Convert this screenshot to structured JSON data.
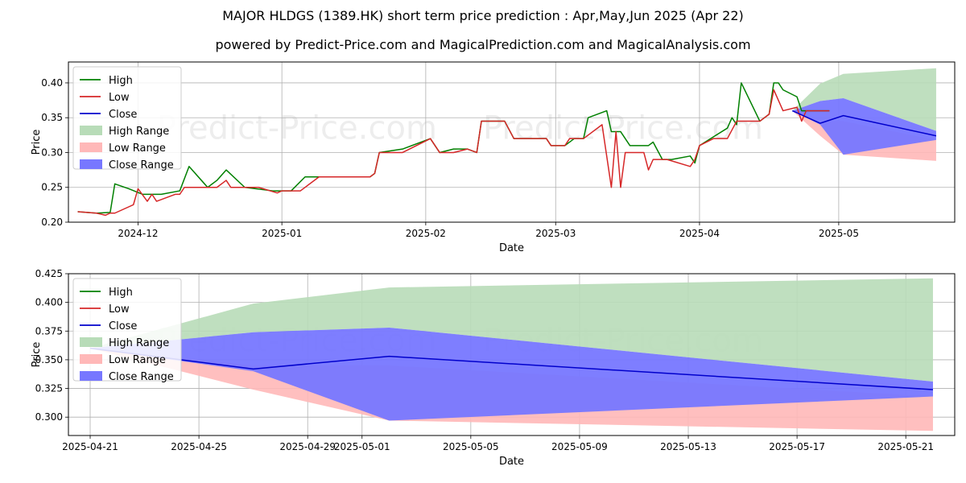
{
  "title": "MAJOR HLDGS (1389.HK) short term price prediction : Apr,May,Jun 2025 (Apr 22)",
  "subtitle": "powered by Predict-Price.com and MagicalPrediction.com and MagicalAnalysis.com",
  "watermark": "Predict-Price.com",
  "colors": {
    "high": "#008000",
    "low": "#d62728",
    "close": "#0000cc",
    "high_range": "#b8dcb8",
    "low_range": "#ffb8b8",
    "close_range": "#7777ff",
    "grid": "#b0b0b0"
  },
  "chart_data": [
    {
      "type": "line",
      "xlabel": "Date",
      "ylabel": "Price",
      "xlim": [
        "2024-11-16",
        "2025-05-26"
      ],
      "ylim": [
        0.2,
        0.43
      ],
      "yticks": [
        0.2,
        0.25,
        0.3,
        0.35,
        0.4
      ],
      "ytick_labels": [
        "0.20",
        "0.25",
        "0.30",
        "0.35",
        "0.40"
      ],
      "xticks": [
        "2024-12-01",
        "2025-01-01",
        "2025-02-01",
        "2025-03-01",
        "2025-04-01",
        "2025-05-01"
      ],
      "xtick_labels": [
        "2024-12",
        "2025-01",
        "2025-02",
        "2025-03",
        "2025-04",
        "2025-05"
      ],
      "grid": true,
      "legend": "upper left",
      "legend_entries": [
        "High",
        "Low",
        "Close",
        "High Range",
        "Low Range",
        "Close Range"
      ],
      "series": [
        {
          "name": "High",
          "points": [
            [
              "2024-11-18",
              0.215
            ],
            [
              "2024-11-22",
              0.213
            ],
            [
              "2024-11-25",
              0.214
            ],
            [
              "2024-11-26",
              0.255
            ],
            [
              "2024-11-29",
              0.248
            ],
            [
              "2024-12-02",
              0.24
            ],
            [
              "2024-12-06",
              0.24
            ],
            [
              "2024-12-10",
              0.245
            ],
            [
              "2024-12-12",
              0.28
            ],
            [
              "2024-12-16",
              0.25
            ],
            [
              "2024-12-18",
              0.26
            ],
            [
              "2024-12-20",
              0.275
            ],
            [
              "2024-12-24",
              0.25
            ],
            [
              "2024-12-30",
              0.245
            ],
            [
              "2025-01-03",
              0.245
            ],
            [
              "2025-01-06",
              0.265
            ],
            [
              "2025-01-15",
              0.265
            ],
            [
              "2025-01-20",
              0.265
            ],
            [
              "2025-01-21",
              0.27
            ],
            [
              "2025-01-22",
              0.3
            ],
            [
              "2025-01-27",
              0.305
            ],
            [
              "2025-02-02",
              0.32
            ],
            [
              "2025-02-04",
              0.3
            ],
            [
              "2025-02-07",
              0.305
            ],
            [
              "2025-02-10",
              0.305
            ],
            [
              "2025-02-12",
              0.3
            ],
            [
              "2025-02-13",
              0.345
            ],
            [
              "2025-02-18",
              0.345
            ],
            [
              "2025-02-20",
              0.32
            ],
            [
              "2025-02-24",
              0.32
            ],
            [
              "2025-02-27",
              0.32
            ],
            [
              "2025-02-28",
              0.31
            ],
            [
              "2025-03-03",
              0.31
            ],
            [
              "2025-03-05",
              0.32
            ],
            [
              "2025-03-07",
              0.32
            ],
            [
              "2025-03-08",
              0.35
            ],
            [
              "2025-03-12",
              0.36
            ],
            [
              "2025-03-13",
              0.33
            ],
            [
              "2025-03-15",
              0.33
            ],
            [
              "2025-03-17",
              0.31
            ],
            [
              "2025-03-21",
              0.31
            ],
            [
              "2025-03-22",
              0.315
            ],
            [
              "2025-03-24",
              0.29
            ],
            [
              "2025-03-26",
              0.29
            ],
            [
              "2025-03-30",
              0.295
            ],
            [
              "2025-03-31",
              0.285
            ],
            [
              "2025-04-01",
              0.31
            ],
            [
              "2025-04-07",
              0.335
            ],
            [
              "2025-04-08",
              0.35
            ],
            [
              "2025-04-09",
              0.34
            ],
            [
              "2025-04-10",
              0.4
            ],
            [
              "2025-04-14",
              0.345
            ],
            [
              "2025-04-16",
              0.355
            ],
            [
              "2025-04-17",
              0.4
            ],
            [
              "2025-04-18",
              0.4
            ],
            [
              "2025-04-19",
              0.39
            ],
            [
              "2025-04-22",
              0.38
            ],
            [
              "2025-04-23",
              0.36
            ],
            [
              "2025-04-29",
              0.36
            ]
          ]
        },
        {
          "name": "Low",
          "points": [
            [
              "2024-11-18",
              0.215
            ],
            [
              "2024-11-22",
              0.213
            ],
            [
              "2024-11-24",
              0.21
            ],
            [
              "2024-11-25",
              0.213
            ],
            [
              "2024-11-26",
              0.213
            ],
            [
              "2024-11-30",
              0.225
            ],
            [
              "2024-12-01",
              0.248
            ],
            [
              "2024-12-03",
              0.23
            ],
            [
              "2024-12-04",
              0.24
            ],
            [
              "2024-12-05",
              0.23
            ],
            [
              "2024-12-09",
              0.24
            ],
            [
              "2024-12-10",
              0.24
            ],
            [
              "2024-12-11",
              0.25
            ],
            [
              "2024-12-16",
              0.25
            ],
            [
              "2024-12-18",
              0.25
            ],
            [
              "2024-12-20",
              0.26
            ],
            [
              "2024-12-21",
              0.25
            ],
            [
              "2024-12-27",
              0.25
            ],
            [
              "2024-12-31",
              0.242
            ],
            [
              "2025-01-01",
              0.245
            ],
            [
              "2025-01-05",
              0.245
            ],
            [
              "2025-01-09",
              0.265
            ],
            [
              "2025-01-20",
              0.265
            ],
            [
              "2025-01-21",
              0.27
            ],
            [
              "2025-01-22",
              0.3
            ],
            [
              "2025-01-27",
              0.3
            ],
            [
              "2025-02-02",
              0.32
            ],
            [
              "2025-02-04",
              0.3
            ],
            [
              "2025-02-07",
              0.3
            ],
            [
              "2025-02-10",
              0.305
            ],
            [
              "2025-02-12",
              0.3
            ],
            [
              "2025-02-13",
              0.345
            ],
            [
              "2025-02-18",
              0.345
            ],
            [
              "2025-02-20",
              0.32
            ],
            [
              "2025-02-24",
              0.32
            ],
            [
              "2025-02-27",
              0.32
            ],
            [
              "2025-02-28",
              0.31
            ],
            [
              "2025-03-03",
              0.31
            ],
            [
              "2025-03-04",
              0.32
            ],
            [
              "2025-03-07",
              0.32
            ],
            [
              "2025-03-11",
              0.34
            ],
            [
              "2025-03-13",
              0.25
            ],
            [
              "2025-03-14",
              0.33
            ],
            [
              "2025-03-15",
              0.25
            ],
            [
              "2025-03-16",
              0.3
            ],
            [
              "2025-03-20",
              0.3
            ],
            [
              "2025-03-21",
              0.275
            ],
            [
              "2025-03-22",
              0.29
            ],
            [
              "2025-03-25",
              0.29
            ],
            [
              "2025-03-30",
              0.28
            ],
            [
              "2025-03-31",
              0.29
            ],
            [
              "2025-04-01",
              0.31
            ],
            [
              "2025-04-04",
              0.32
            ],
            [
              "2025-04-07",
              0.32
            ],
            [
              "2025-04-09",
              0.345
            ],
            [
              "2025-04-14",
              0.345
            ],
            [
              "2025-04-16",
              0.355
            ],
            [
              "2025-04-17",
              0.39
            ],
            [
              "2025-04-19",
              0.36
            ],
            [
              "2025-04-22",
              0.365
            ],
            [
              "2025-04-23",
              0.345
            ],
            [
              "2025-04-24",
              0.36
            ],
            [
              "2025-04-29",
              0.36
            ]
          ]
        },
        {
          "name": "Close",
          "points": [
            [
              "2025-04-21",
              0.36
            ],
            [
              "2025-04-27",
              0.342
            ],
            [
              "2025-05-02",
              0.353
            ],
            [
              "2025-05-22",
              0.324
            ]
          ]
        },
        {
          "name": "High Range",
          "points": [
            [
              "2025-04-21",
              0.36
            ],
            [
              "2025-04-27",
              0.399
            ],
            [
              "2025-05-02",
              0.413
            ],
            [
              "2025-05-22",
              0.421
            ]
          ]
        },
        {
          "name": "Low Range",
          "lower": [
            [
              "2025-04-21",
              0.36
            ],
            [
              "2025-04-27",
              0.324
            ],
            [
              "2025-05-02",
              0.297
            ],
            [
              "2025-05-22",
              0.288
            ]
          ],
          "upper": [
            [
              "2025-04-21",
              0.36
            ],
            [
              "2025-04-27",
              0.345
            ],
            [
              "2025-05-02",
              0.345
            ],
            [
              "2025-05-22",
              0.318
            ]
          ]
        },
        {
          "name": "Close Range",
          "lower": [
            [
              "2025-04-21",
              0.36
            ],
            [
              "2025-04-27",
              0.34
            ],
            [
              "2025-05-02",
              0.297
            ],
            [
              "2025-05-22",
              0.318
            ]
          ],
          "upper": [
            [
              "2025-04-21",
              0.36
            ],
            [
              "2025-04-27",
              0.374
            ],
            [
              "2025-05-02",
              0.378
            ],
            [
              "2025-05-22",
              0.331
            ]
          ]
        }
      ]
    },
    {
      "type": "area",
      "xlabel": "Date",
      "ylabel": "Price",
      "xlim": [
        "2025-04-20.2",
        "2025-05-22.8"
      ],
      "ylim": [
        0.284,
        0.425
      ],
      "yticks": [
        0.3,
        0.325,
        0.35,
        0.375,
        0.4,
        0.425
      ],
      "ytick_labels": [
        "0.300",
        "0.325",
        "0.350",
        "0.375",
        "0.400",
        "0.425"
      ],
      "xticks": [
        "2025-04-21",
        "2025-04-25",
        "2025-04-29",
        "2025-05-01",
        "2025-05-05",
        "2025-05-09",
        "2025-05-13",
        "2025-05-17",
        "2025-05-21"
      ],
      "xtick_labels": [
        "2025-04-21",
        "2025-04-25",
        "2025-04-29",
        "2025-05-01",
        "2025-05-05",
        "2025-05-09",
        "2025-05-13",
        "2025-05-17",
        "2025-05-21"
      ],
      "grid": true,
      "legend": "upper left",
      "legend_entries": [
        "High",
        "Low",
        "Close",
        "High Range",
        "Low Range",
        "Close Range"
      ]
    }
  ]
}
